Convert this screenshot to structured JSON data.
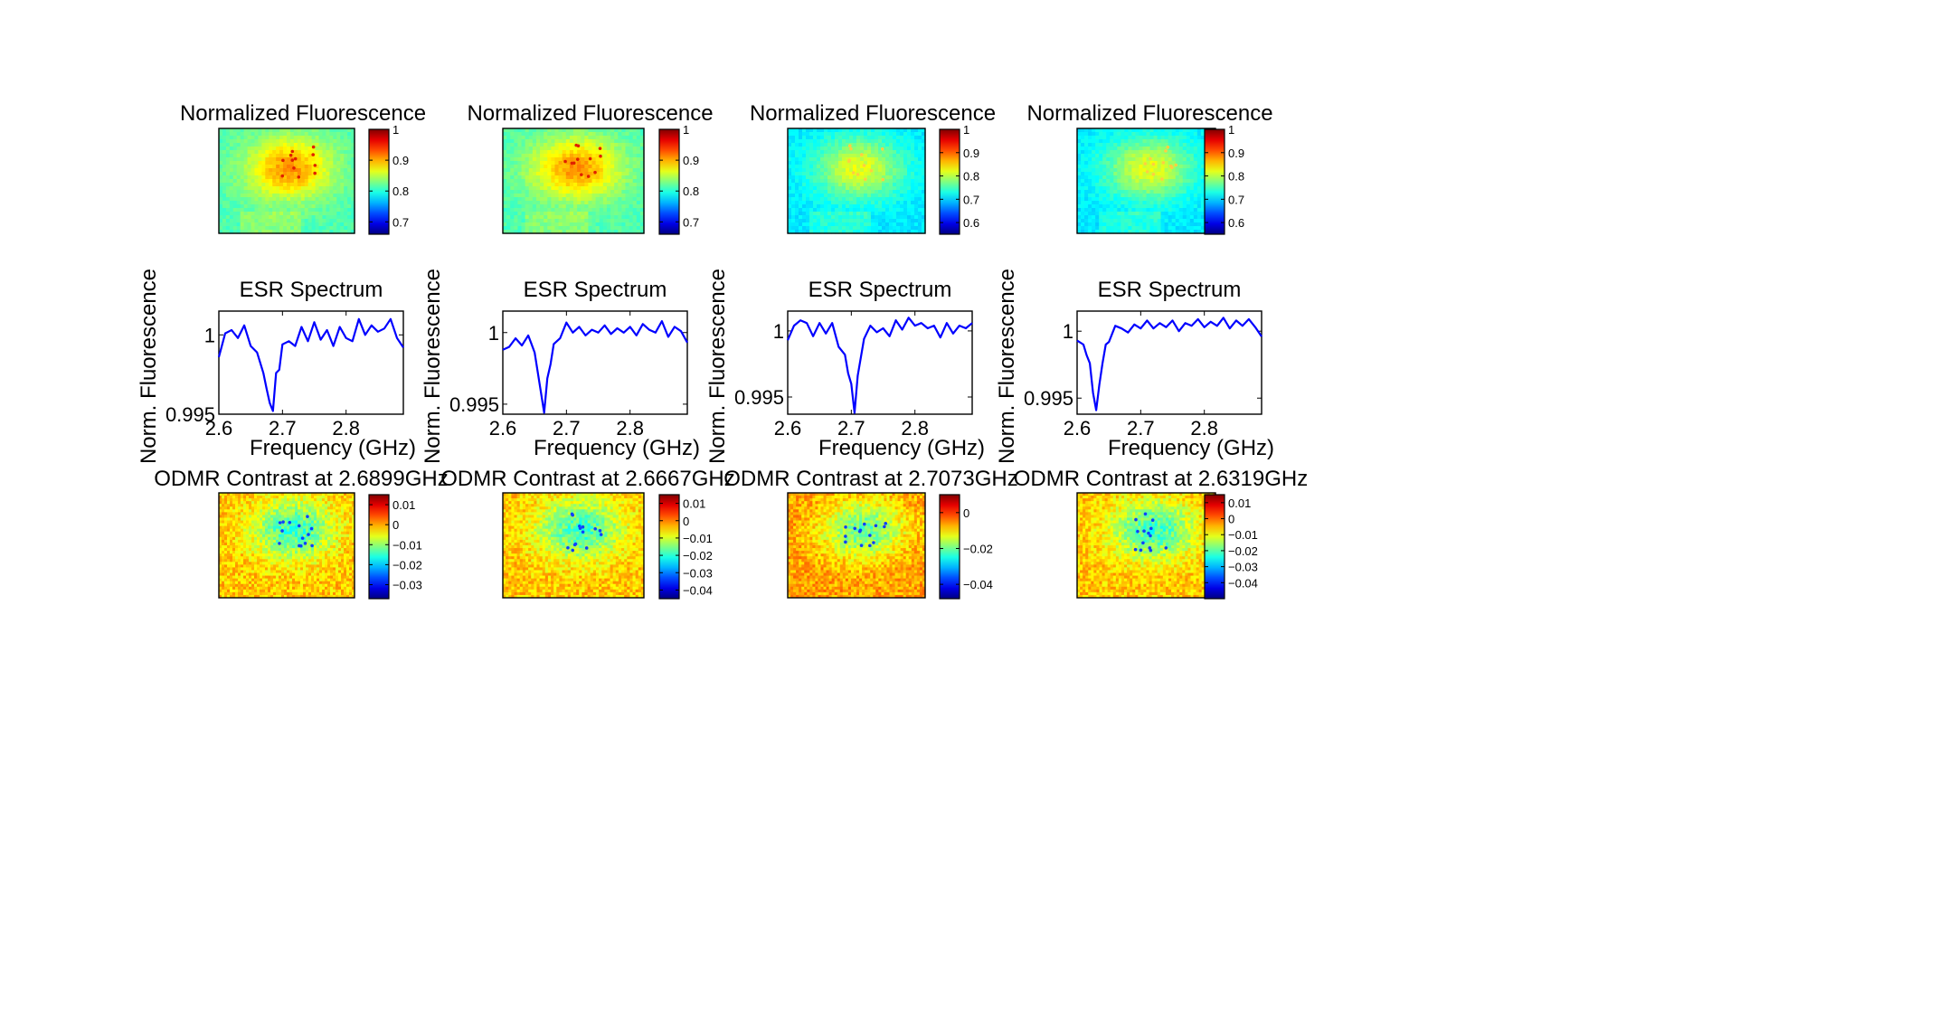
{
  "chart_data": [
    {
      "type": "heatmap",
      "title": "Normalized Fluorescence",
      "colorbar_ticks": [
        "1",
        "0.9",
        "0.8",
        "0.7"
      ],
      "colorbar_range": [
        0.65,
        1.0
      ],
      "colormap": "jet",
      "columns": 4,
      "panels": [
        {
          "title": "Normalized Fluorescence",
          "colorbar_ticks": [
            "1",
            "0.9",
            "0.8",
            "0.7"
          ],
          "colorbar_range": [
            0.66,
            1.0
          ]
        },
        {
          "title": "Normalized Fluorescence",
          "colorbar_ticks": [
            "1",
            "0.9",
            "0.8",
            "0.7"
          ],
          "colorbar_range": [
            0.66,
            1.0
          ]
        },
        {
          "title": "Normalized Fluorescence",
          "colorbar_ticks": [
            "1",
            "0.9",
            "0.8",
            "0.7",
            "0.6"
          ],
          "colorbar_range": [
            0.55,
            1.0
          ]
        },
        {
          "title": "Normalized Fluorescence",
          "colorbar_ticks": [
            "1",
            "0.9",
            "0.8",
            "0.7",
            "0.6"
          ],
          "colorbar_range": [
            0.55,
            1.0
          ]
        }
      ]
    },
    {
      "type": "line",
      "panels": [
        {
          "title": "ESR Spectrum",
          "xlabel": "Frequency (GHz)",
          "ylabel": "Norm. Fluorescence",
          "xlim": [
            2.6,
            2.89
          ],
          "ylim": [
            0.995,
            1.0015
          ],
          "xticks": [
            "2.6",
            "2.7",
            "2.8"
          ],
          "yticks": [
            "1",
            "0.995"
          ],
          "color": "#0000ff",
          "x": [
            2.6,
            2.61,
            2.62,
            2.63,
            2.64,
            2.65,
            2.66,
            2.67,
            2.675,
            2.68,
            2.685,
            2.69,
            2.695,
            2.7,
            2.71,
            2.72,
            2.73,
            2.74,
            2.75,
            2.76,
            2.77,
            2.78,
            2.79,
            2.8,
            2.81,
            2.82,
            2.83,
            2.84,
            2.85,
            2.86,
            2.87,
            2.88,
            2.89
          ],
          "y": [
            0.9986,
            1.0001,
            1.0003,
            0.9998,
            1.0006,
            0.9993,
            0.9989,
            0.9976,
            0.9966,
            0.9957,
            0.9952,
            0.9976,
            0.9978,
            0.9994,
            0.9996,
            0.9993,
            1.0005,
            0.9996,
            1.0008,
            0.9997,
            1.0003,
            0.9993,
            1.0005,
            0.9998,
            0.9996,
            1.001,
            1.0,
            1.0006,
            1.0002,
            1.0004,
            1.001,
            0.9998,
            0.9992
          ]
        },
        {
          "title": "ESR Spectrum",
          "xlabel": "Frequency (GHz)",
          "ylabel": "Norm. Fluorescence",
          "xlim": [
            2.6,
            2.89
          ],
          "ylim": [
            0.9943,
            1.0015
          ],
          "xticks": [
            "2.6",
            "2.7",
            "2.8"
          ],
          "yticks": [
            "1",
            "0.995"
          ],
          "color": "#0000ff",
          "x": [
            2.6,
            2.61,
            2.62,
            2.63,
            2.64,
            2.645,
            2.65,
            2.655,
            2.66,
            2.665,
            2.67,
            2.675,
            2.68,
            2.69,
            2.7,
            2.71,
            2.72,
            2.73,
            2.74,
            2.75,
            2.76,
            2.77,
            2.78,
            2.79,
            2.8,
            2.81,
            2.82,
            2.83,
            2.84,
            2.85,
            2.86,
            2.87,
            2.88,
            2.89
          ],
          "y": [
            0.9988,
            0.999,
            0.9996,
            0.9991,
            0.9998,
            0.9992,
            0.9986,
            0.9972,
            0.9958,
            0.9944,
            0.9968,
            0.9978,
            0.9992,
            0.9996,
            1.0007,
            1.0,
            1.0004,
            0.9998,
            1.0002,
            1.0,
            1.0005,
            0.9999,
            1.0003,
            1.0,
            1.0004,
            0.9998,
            1.0006,
            1.0002,
            1.0,
            1.0008,
            0.9997,
            1.0004,
            1.0001,
            0.9993
          ]
        },
        {
          "title": "ESR Spectrum",
          "xlabel": "Frequency (GHz)",
          "ylabel": "Norm. Fluorescence",
          "xlim": [
            2.6,
            2.89
          ],
          "ylim": [
            0.9937,
            1.0015
          ],
          "xticks": [
            "2.6",
            "2.7",
            "2.8"
          ],
          "yticks": [
            "1",
            "0.995"
          ],
          "color": "#0000ff",
          "x": [
            2.6,
            2.61,
            2.62,
            2.63,
            2.64,
            2.65,
            2.66,
            2.67,
            2.68,
            2.69,
            2.695,
            2.7,
            2.705,
            2.71,
            2.72,
            2.73,
            2.74,
            2.75,
            2.76,
            2.77,
            2.78,
            2.79,
            2.8,
            2.81,
            2.82,
            2.83,
            2.84,
            2.85,
            2.86,
            2.87,
            2.88,
            2.89
          ],
          "y": [
            0.9993,
            1.0004,
            1.0008,
            1.0006,
            0.9996,
            1.0006,
            0.9998,
            1.0006,
            0.9988,
            0.9982,
            0.9968,
            0.996,
            0.9938,
            0.9966,
            0.9994,
            1.0004,
            0.9999,
            1.0002,
            0.9996,
            1.0008,
            1.0001,
            1.001,
            1.0004,
            1.0006,
            1.0002,
            1.0004,
            0.9995,
            1.0006,
            0.9998,
            1.0004,
            1.0002,
            1.0006
          ]
        },
        {
          "title": "ESR Spectrum",
          "xlabel": "Frequency (GHz)",
          "ylabel": "Norm. Fluorescence",
          "xlim": [
            2.6,
            2.89
          ],
          "ylim": [
            0.9938,
            1.0015
          ],
          "xticks": [
            "2.6",
            "2.7",
            "2.8"
          ],
          "yticks": [
            "1",
            "0.995"
          ],
          "color": "#0000ff",
          "x": [
            2.6,
            2.61,
            2.615,
            2.62,
            2.625,
            2.63,
            2.635,
            2.64,
            2.645,
            2.65,
            2.66,
            2.67,
            2.68,
            2.69,
            2.7,
            2.71,
            2.72,
            2.73,
            2.74,
            2.75,
            2.76,
            2.77,
            2.78,
            2.79,
            2.8,
            2.81,
            2.82,
            2.83,
            2.84,
            2.85,
            2.86,
            2.87,
            2.88,
            2.89
          ],
          "y": [
            0.9993,
            0.999,
            0.9982,
            0.9976,
            0.9954,
            0.9941,
            0.996,
            0.9976,
            0.999,
            0.9992,
            1.0004,
            1.0002,
            0.9999,
            1.0005,
            1.0002,
            1.0008,
            1.0002,
            1.0006,
            1.0003,
            1.0008,
            1.0,
            1.0006,
            1.0004,
            1.0009,
            1.0003,
            1.0007,
            1.0004,
            1.001,
            1.0002,
            1.0008,
            1.0004,
            1.0009,
            1.0003,
            0.9996
          ]
        }
      ]
    },
    {
      "type": "heatmap",
      "colormap": "jet",
      "panels": [
        {
          "title": "ODMR Contrast at 2.6899GHz",
          "colorbar_ticks": [
            "0.01",
            "0",
            "−0.01",
            "−0.02",
            "−0.03"
          ],
          "colorbar_range": [
            -0.037,
            0.015
          ]
        },
        {
          "title": "ODMR Contrast at 2.6667GHz",
          "colorbar_ticks": [
            "0.01",
            "0",
            "−0.01",
            "−0.02",
            "−0.03",
            "−0.04"
          ],
          "colorbar_range": [
            -0.045,
            0.015
          ]
        },
        {
          "title": "ODMR Contrast at 2.7073GHz",
          "colorbar_ticks": [
            "0",
            "−0.02",
            "−0.04"
          ],
          "colorbar_range": [
            -0.048,
            0.01
          ]
        },
        {
          "title": "ODMR Contrast at 2.6319GHz",
          "colorbar_ticks": [
            "0.01",
            "0",
            "−0.01",
            "−0.02",
            "−0.03",
            "−0.04"
          ],
          "colorbar_range": [
            -0.05,
            0.015
          ]
        }
      ]
    }
  ]
}
